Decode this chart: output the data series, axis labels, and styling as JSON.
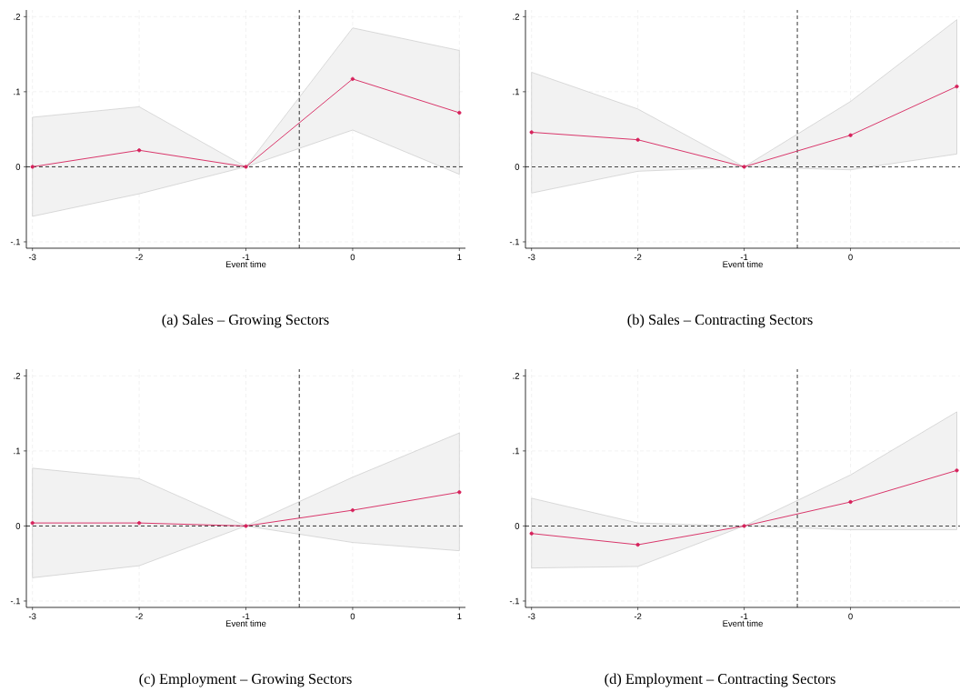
{
  "chart_data": [
    {
      "type": "line",
      "title": "(a)  Sales – Growing Sectors",
      "xlabel": "Event time",
      "x": [
        -3,
        -2,
        -1,
        0,
        1
      ],
      "xlim": [
        -3.057,
        1.057
      ],
      "ylim": [
        -0.1085,
        0.2089
      ],
      "xticks": [
        -3,
        -2,
        -1,
        0,
        1
      ],
      "yticks": [
        {
          "value": -0.1,
          "label": "-.1"
        },
        0,
        {
          "value": 0.1,
          "label": ".1"
        },
        {
          "value": 0.2,
          "label": ".2"
        }
      ],
      "grid": true,
      "marker": "circle",
      "line_style": "solid",
      "series": [
        {
          "color": "#d6215b",
          "values": [
            0,
            0.022,
            0,
            0.117,
            0.072
          ],
          "lower": [
            -0.066,
            -0.036,
            0,
            0.049,
            -0.01
          ],
          "upper": [
            0.066,
            0.08,
            0,
            0.185,
            0.155
          ]
        }
      ],
      "ref_lines": [
        {
          "axis": "y",
          "value": 0,
          "color": "#000000",
          "line_style": "dashed"
        },
        {
          "axis": "x",
          "value": -0.5,
          "color": "#000000",
          "line_style": "dashed"
        }
      ]
    },
    {
      "type": "line",
      "title": "(b)  Sales – Contracting Sectors",
      "xlabel": "Event time",
      "x": [
        -3,
        -2,
        -1,
        0,
        1
      ],
      "xlim": [
        -3.057,
        1.03
      ],
      "ylim": [
        -0.1085,
        0.2089
      ],
      "xticks": [
        -3,
        -2,
        -1,
        0
      ],
      "yticks": [
        {
          "value": -0.1,
          "label": "-.1"
        },
        0,
        {
          "value": 0.1,
          "label": ".1"
        },
        {
          "value": 0.2,
          "label": ".2"
        }
      ],
      "grid": true,
      "marker": "circle",
      "line_style": "solid",
      "series": [
        {
          "color": "#d6215b",
          "values": [
            0.046,
            0.036,
            0,
            0.042,
            0.107
          ],
          "lower": [
            -0.035,
            -0.006,
            0,
            -0.004,
            0.017
          ],
          "upper": [
            0.126,
            0.077,
            0,
            0.087,
            0.196
          ]
        }
      ],
      "ref_lines": [
        {
          "axis": "y",
          "value": 0,
          "color": "#000000",
          "line_style": "dashed"
        },
        {
          "axis": "x",
          "value": -0.5,
          "color": "#000000",
          "line_style": "dashed"
        }
      ]
    },
    {
      "type": "line",
      "title": "(c)  Employment – Growing Sectors",
      "xlabel": "Event time",
      "x": [
        -3,
        -2,
        -1,
        0,
        1
      ],
      "xlim": [
        -3.057,
        1.057
      ],
      "ylim": [
        -0.1085,
        0.2089
      ],
      "xticks": [
        -3,
        -2,
        -1,
        0,
        1
      ],
      "yticks": [
        {
          "value": -0.1,
          "label": "-.1"
        },
        0,
        {
          "value": 0.1,
          "label": ".1"
        },
        {
          "value": 0.2,
          "label": ".2"
        }
      ],
      "grid": true,
      "marker": "circle",
      "line_style": "solid",
      "series": [
        {
          "color": "#d6215b",
          "values": [
            0.004,
            0.004,
            0,
            0.021,
            0.045
          ],
          "lower": [
            -0.069,
            -0.053,
            0,
            -0.022,
            -0.033
          ],
          "upper": [
            0.077,
            0.063,
            0,
            0.065,
            0.124
          ]
        }
      ],
      "ref_lines": [
        {
          "axis": "y",
          "value": 0,
          "color": "#000000",
          "line_style": "dashed"
        },
        {
          "axis": "x",
          "value": -0.5,
          "color": "#000000",
          "line_style": "dashed"
        }
      ]
    },
    {
      "type": "line",
      "title": "(d)  Employment – Contracting Sectors",
      "xlabel": "Event time",
      "x": [
        -3,
        -2,
        -1,
        0,
        1
      ],
      "xlim": [
        -3.057,
        1.03
      ],
      "ylim": [
        -0.1085,
        0.2089
      ],
      "xticks": [
        -3,
        -2,
        -1,
        0
      ],
      "yticks": [
        {
          "value": -0.1,
          "label": "-.1"
        },
        0,
        {
          "value": 0.1,
          "label": ".1"
        },
        {
          "value": 0.2,
          "label": ".2"
        }
      ],
      "grid": true,
      "marker": "circle",
      "line_style": "solid",
      "series": [
        {
          "color": "#d6215b",
          "values": [
            -0.01,
            -0.025,
            0,
            0.032,
            0.074
          ],
          "lower": [
            -0.056,
            -0.054,
            0,
            -0.005,
            -0.005
          ],
          "upper": [
            0.037,
            0.004,
            0,
            0.068,
            0.152
          ]
        }
      ],
      "ref_lines": [
        {
          "axis": "y",
          "value": 0,
          "color": "#000000",
          "line_style": "dashed"
        },
        {
          "axis": "x",
          "value": -0.5,
          "color": "#000000",
          "line_style": "dashed"
        }
      ]
    }
  ]
}
